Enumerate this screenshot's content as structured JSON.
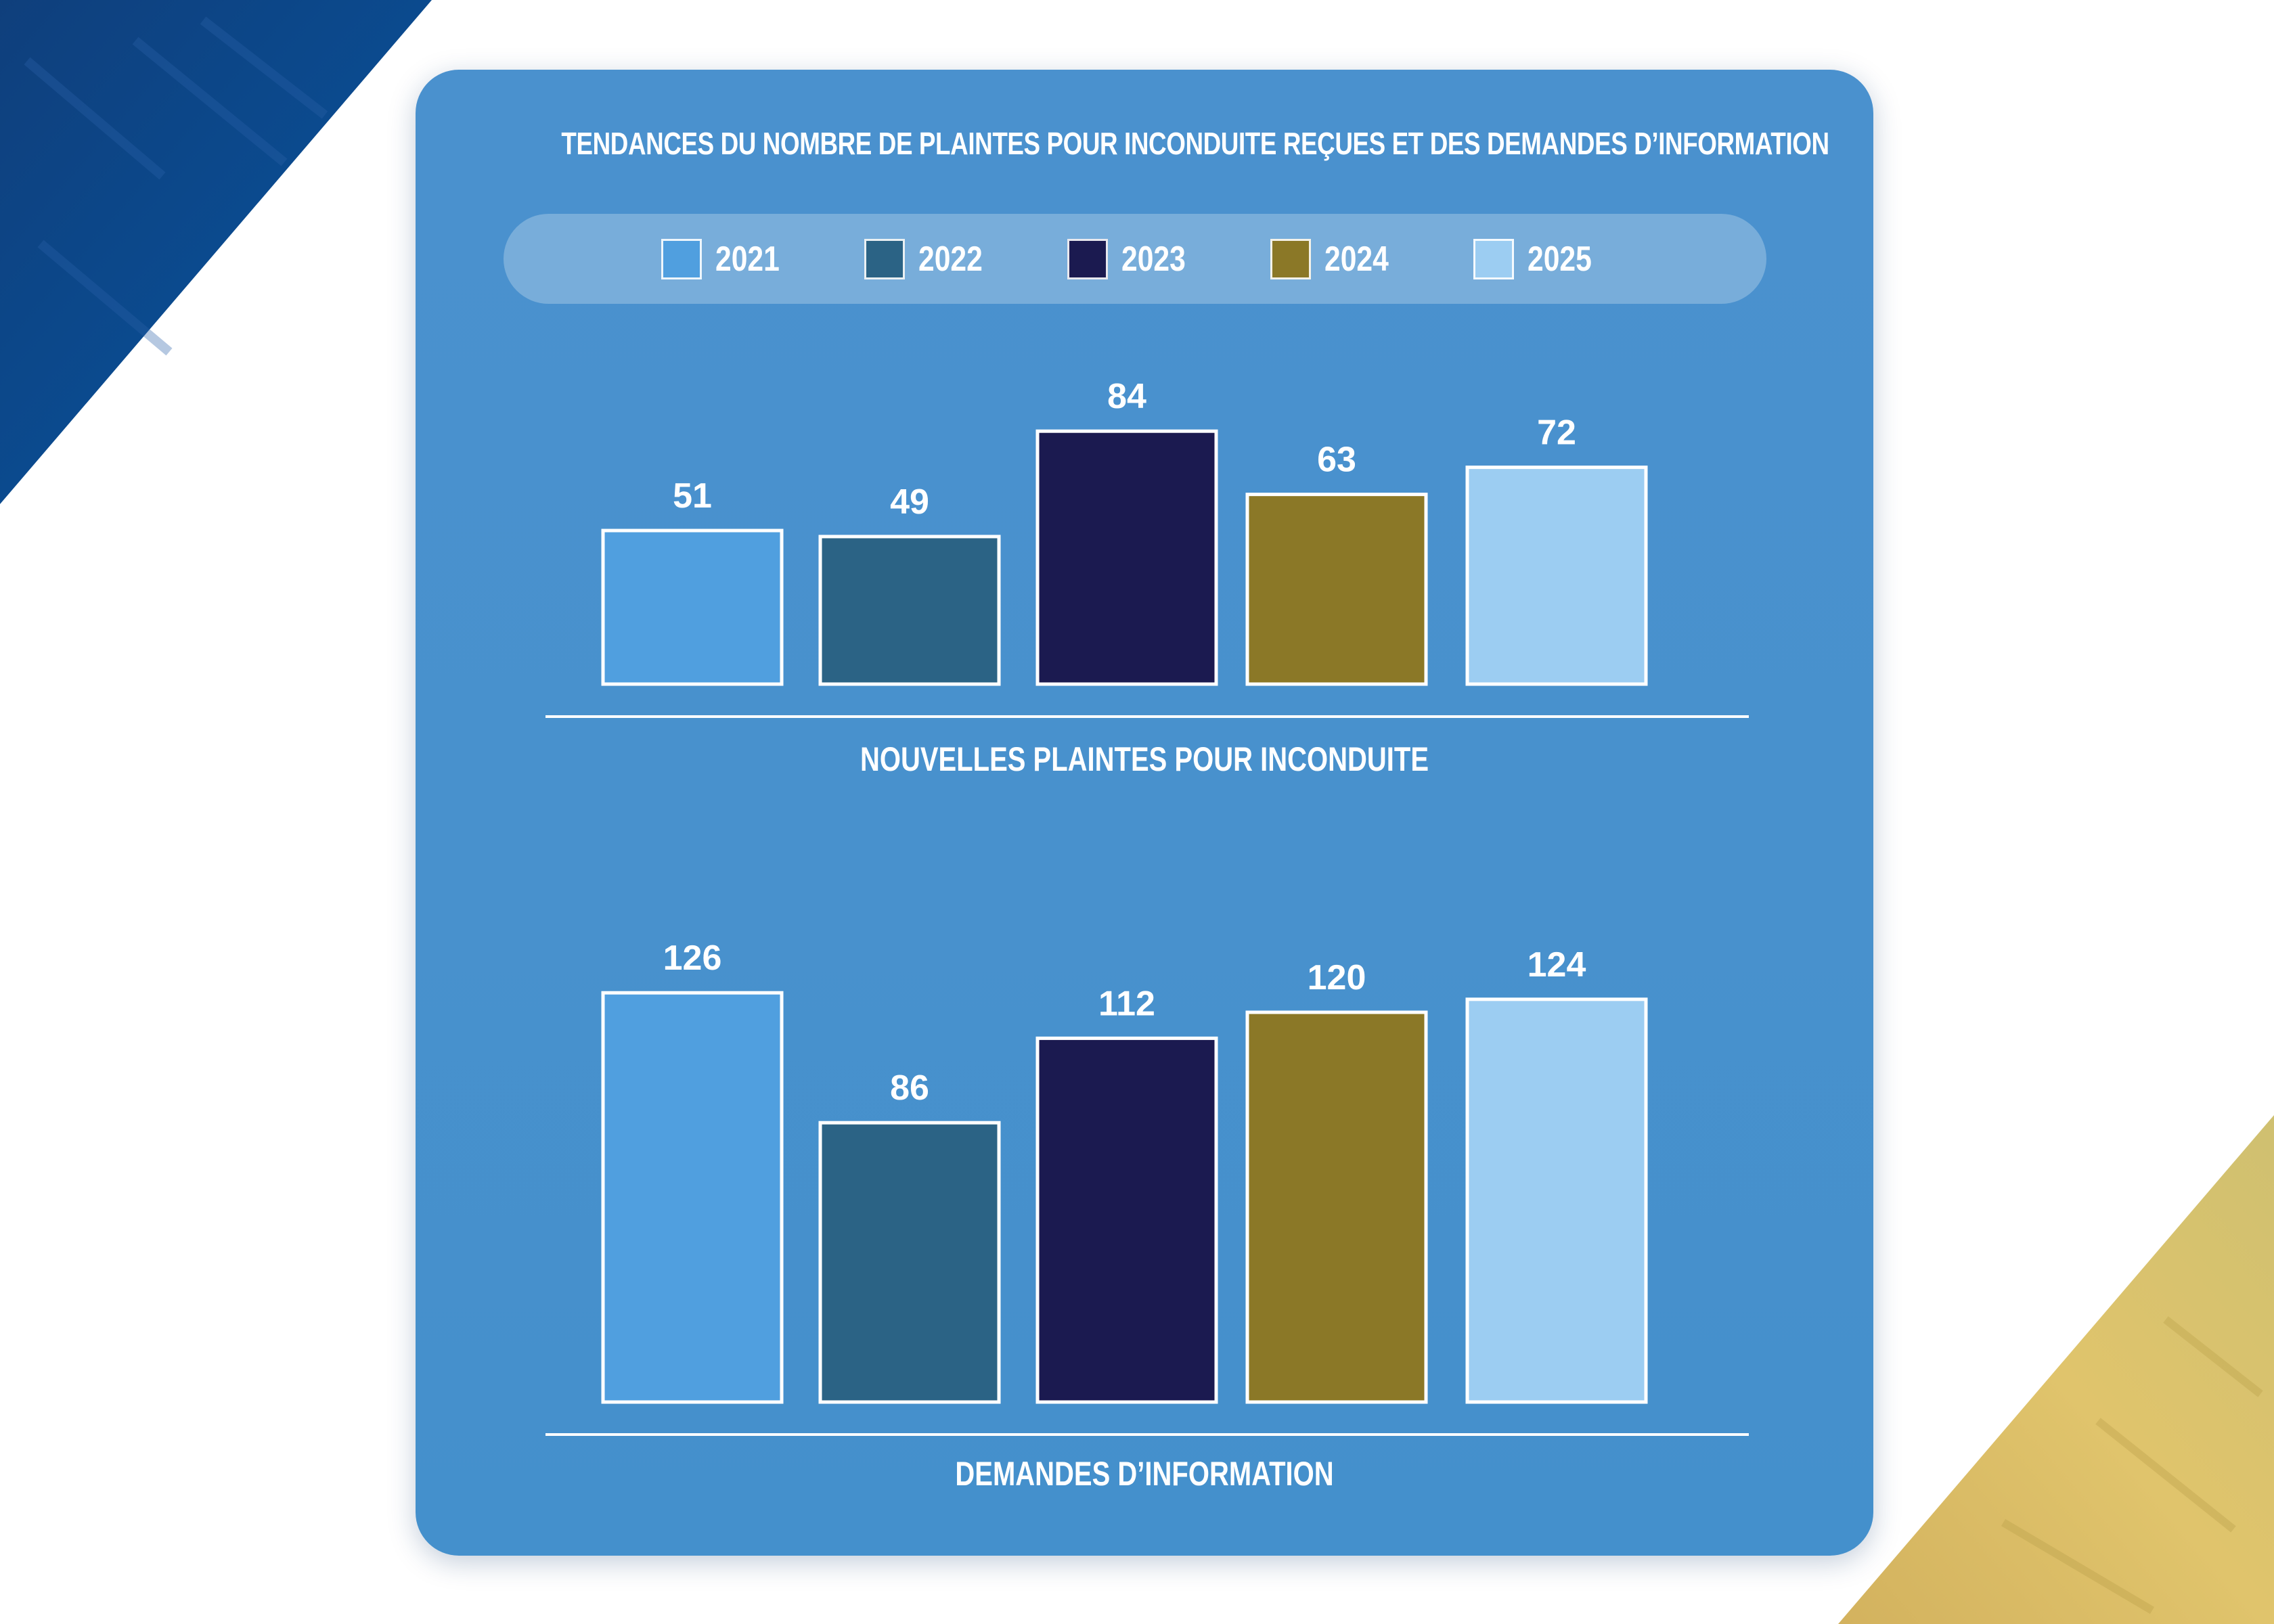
{
  "title": "TENDANCES DU NOMBRE DE PLAINTES POUR INCONDUITE REÇUES ET DES DEMANDES D’INFORMATION",
  "legend": [
    {
      "label": "2021",
      "color": "#509fdf"
    },
    {
      "label": "2022",
      "color": "#2b6385"
    },
    {
      "label": "2023",
      "color": "#1b1a50"
    },
    {
      "label": "2024",
      "color": "#8b7827"
    },
    {
      "label": "2025",
      "color": "#9ccdf2"
    }
  ],
  "chart_data": [
    {
      "type": "bar",
      "title": "NOUVELLES PLAINTES POUR INCONDUITE",
      "categories": [
        "2021",
        "2022",
        "2023",
        "2024",
        "2025"
      ],
      "values": [
        51,
        49,
        84,
        63,
        72
      ],
      "colors": [
        "#509fdf",
        "#2b6385",
        "#1b1a50",
        "#8b7827",
        "#9ccdf2"
      ]
    },
    {
      "type": "bar",
      "title": "DEMANDES D’INFORMATION",
      "categories": [
        "2021",
        "2022",
        "2023",
        "2024",
        "2025"
      ],
      "values": [
        126,
        86,
        112,
        120,
        124
      ],
      "colors": [
        "#509fdf",
        "#2b6385",
        "#1b1a50",
        "#8b7827",
        "#9ccdf2"
      ]
    }
  ]
}
